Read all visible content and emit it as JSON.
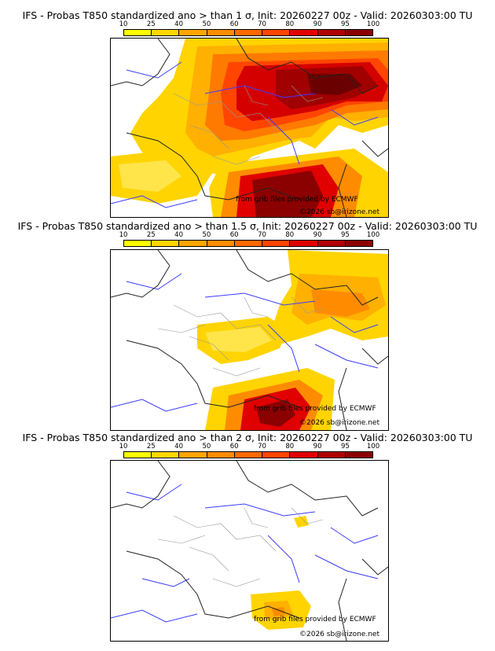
{
  "legend": {
    "ticks": [
      "10",
      "25",
      "40",
      "50",
      "60",
      "70",
      "80",
      "90",
      "95",
      "100"
    ],
    "colors": [
      "#ffff00",
      "#ffd700",
      "#ffa500",
      "#ff8c00",
      "#ff6a00",
      "#ff4500",
      "#e00000",
      "#b00000",
      "#8b0000",
      "#5a0000"
    ]
  },
  "panels": [
    {
      "title": "IFS - Probas T850  standardized ano > than 1 σ, Init: 20260227 00z - Valid: 20260303:00 TU",
      "credit_source": "from grib files provided by ECMWF",
      "credit_copy": "©2026 sb@irizone.net"
    },
    {
      "title": "IFS - Probas T850  standardized ano > than 1.5 σ, Init: 20260227 00z - Valid: 20260303:00 TU",
      "credit_source": "from grib files provided by ECMWF",
      "credit_copy": "©2026 sb@irizone.net"
    },
    {
      "title": "IFS - Probas T850  standardized ano > than 2 σ, Init: 20260227 00z - Valid: 20260303:00 TU",
      "credit_source": "from grib files provided by ECMWF",
      "credit_copy": "©2026 sb@irizone.net"
    }
  ]
}
